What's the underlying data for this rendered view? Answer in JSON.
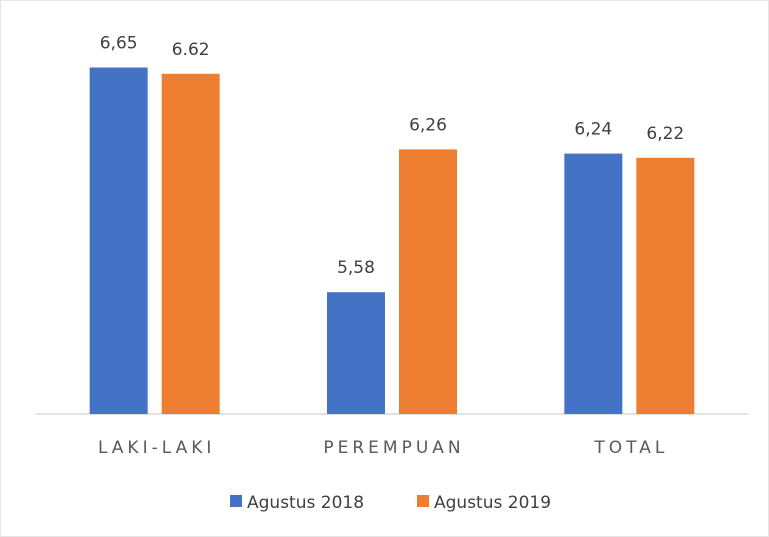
{
  "chart_data": {
    "type": "bar",
    "categories": [
      "LAKI-LAKI",
      "PEREMPUAN",
      "TOTAL"
    ],
    "series": [
      {
        "name": "Agustus 2018",
        "color": "#4472c4",
        "values": [
          6.65,
          5.58,
          6.24
        ],
        "value_labels": [
          "6,65",
          "5,58",
          "6,24"
        ]
      },
      {
        "name": "Agustus 2019",
        "color": "#ed7d31",
        "values": [
          6.62,
          6.26,
          6.22
        ],
        "value_labels": [
          "6.62",
          "6,26",
          "6,22"
        ]
      }
    ],
    "ylim": [
      5,
      6.9
    ],
    "legend": "bottom"
  }
}
